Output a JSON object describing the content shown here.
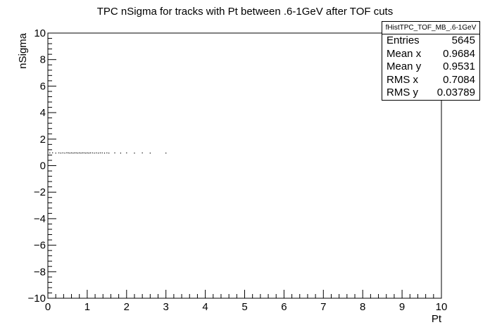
{
  "chart_data": {
    "type": "scatter",
    "title": "TPC nSigma for tracks with Pt between .6-1GeV after TOF cuts",
    "xlabel": "Pt",
    "ylabel": "nSigma",
    "xlim": [
      0,
      10
    ],
    "ylim": [
      -10,
      10
    ],
    "x_ticks": [
      0,
      1,
      2,
      3,
      4,
      5,
      6,
      7,
      8,
      9,
      10
    ],
    "y_ticks": [
      -10,
      -8,
      -6,
      -4,
      -2,
      0,
      2,
      4,
      6,
      8,
      10
    ],
    "x_tick_labels": [
      "0",
      "1",
      "2",
      "3",
      "4",
      "5",
      "6",
      "7",
      "8",
      "9",
      "10"
    ],
    "y_tick_labels": [
      "−10",
      "−8",
      "−6",
      "−4",
      "−2",
      "0",
      "2",
      "4",
      "6",
      "8",
      "10"
    ],
    "grid": false,
    "points": [
      {
        "x": 0.05,
        "y": 0.96
      },
      {
        "x": 0.12,
        "y": 0.97
      },
      {
        "x": 0.2,
        "y": 0.95
      },
      {
        "x": 0.28,
        "y": 0.96
      },
      {
        "x": 0.33,
        "y": 0.95
      },
      {
        "x": 0.38,
        "y": 0.96
      },
      {
        "x": 0.43,
        "y": 0.95
      },
      {
        "x": 0.48,
        "y": 0.97
      },
      {
        "x": 0.52,
        "y": 0.96
      },
      {
        "x": 0.56,
        "y": 0.95
      },
      {
        "x": 0.6,
        "y": 0.96
      },
      {
        "x": 0.64,
        "y": 0.95
      },
      {
        "x": 0.68,
        "y": 0.96
      },
      {
        "x": 0.72,
        "y": 0.96
      },
      {
        "x": 0.76,
        "y": 0.95
      },
      {
        "x": 0.8,
        "y": 0.96
      },
      {
        "x": 0.84,
        "y": 0.95
      },
      {
        "x": 0.88,
        "y": 0.96
      },
      {
        "x": 0.92,
        "y": 0.96
      },
      {
        "x": 0.96,
        "y": 0.95
      },
      {
        "x": 1.0,
        "y": 0.96
      },
      {
        "x": 1.04,
        "y": 0.95
      },
      {
        "x": 1.08,
        "y": 0.96
      },
      {
        "x": 1.13,
        "y": 0.96
      },
      {
        "x": 1.18,
        "y": 0.95
      },
      {
        "x": 1.23,
        "y": 0.96
      },
      {
        "x": 1.28,
        "y": 0.95
      },
      {
        "x": 1.33,
        "y": 0.96
      },
      {
        "x": 1.38,
        "y": 0.96
      },
      {
        "x": 1.44,
        "y": 0.95
      },
      {
        "x": 1.5,
        "y": 0.96
      },
      {
        "x": 1.55,
        "y": 0.95
      },
      {
        "x": 1.7,
        "y": 0.96
      },
      {
        "x": 1.85,
        "y": 0.95
      },
      {
        "x": 2.0,
        "y": 0.96
      },
      {
        "x": 2.2,
        "y": 0.95
      },
      {
        "x": 2.4,
        "y": 0.96
      },
      {
        "x": 2.6,
        "y": 0.95
      },
      {
        "x": 3.0,
        "y": 0.95
      }
    ],
    "stats": {
      "name": "fHistTPC_TOF_MB_.6-1GeV",
      "rows": [
        {
          "label": "Entries",
          "value": "5645"
        },
        {
          "label": "Mean x",
          "value": "0.9684"
        },
        {
          "label": "Mean y",
          "value": "0.9531"
        },
        {
          "label": "RMS x",
          "value": "0.7084"
        },
        {
          "label": "RMS y",
          "value": "0.03789"
        }
      ]
    }
  }
}
